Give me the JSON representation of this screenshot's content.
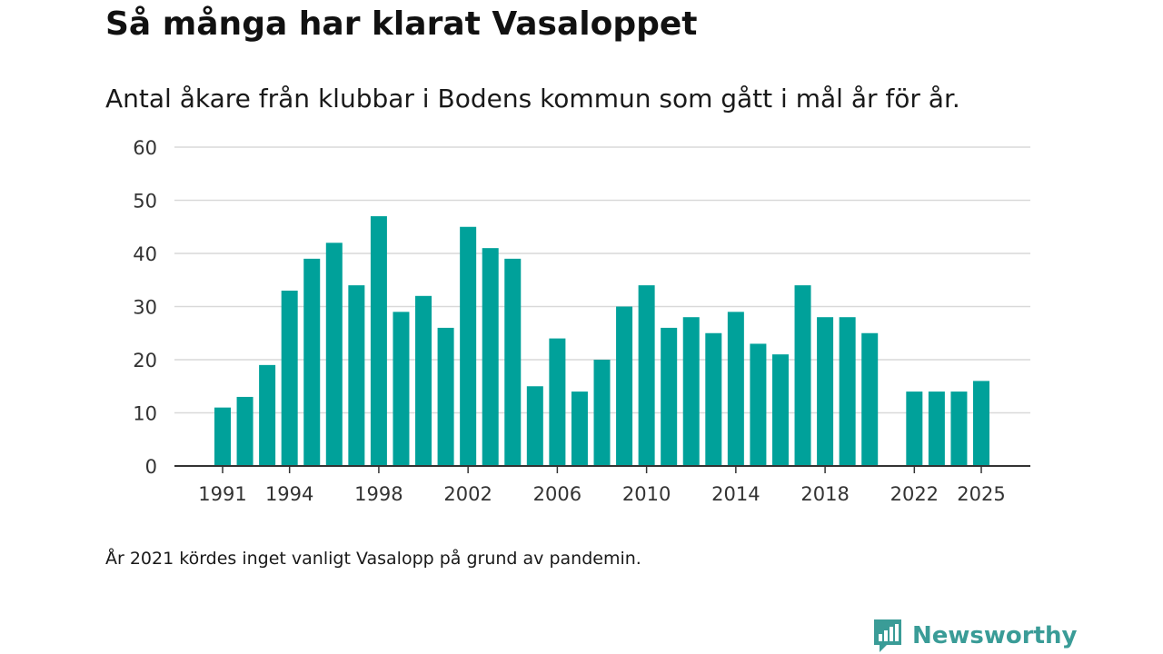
{
  "title": "Så många har klarat Vasaloppet",
  "subtitle": "Antal åkare från klubbar i Bodens kommun som gått i mål år för år.",
  "footnote": "År 2021 kördes inget vanligt Vasalopp på grund av pandemin.",
  "brand": {
    "name": "Newsworthy",
    "logo_icon": "newsworthy-bar-chart-icon",
    "color": "#3a9c97"
  },
  "colors": {
    "bar": "#00a19a",
    "grid": "#d9d9d9",
    "axis": "#333333"
  },
  "chart_data": {
    "type": "bar",
    "title": "Så många har klarat Vasaloppet",
    "subtitle": "Antal åkare från klubbar i Bodens kommun som gått i mål år för år.",
    "xlabel": "",
    "ylabel": "",
    "ylim": [
      0,
      60
    ],
    "yticks": [
      0,
      10,
      20,
      30,
      40,
      50,
      60
    ],
    "xticks": [
      1991,
      1994,
      1998,
      2002,
      2006,
      2010,
      2014,
      2018,
      2022,
      2025
    ],
    "xrange": [
      1991,
      2025
    ],
    "grid": true,
    "legend": "none",
    "categories": [
      1991,
      1992,
      1993,
      1994,
      1995,
      1996,
      1997,
      1998,
      1999,
      2000,
      2001,
      2002,
      2003,
      2004,
      2005,
      2006,
      2007,
      2008,
      2009,
      2010,
      2011,
      2012,
      2013,
      2014,
      2015,
      2016,
      2017,
      2018,
      2019,
      2020,
      2022,
      2023,
      2024,
      2025
    ],
    "values": [
      11,
      13,
      19,
      33,
      39,
      42,
      34,
      47,
      29,
      32,
      26,
      45,
      41,
      39,
      15,
      24,
      14,
      20,
      30,
      34,
      26,
      28,
      25,
      29,
      23,
      21,
      34,
      28,
      28,
      25,
      14,
      14,
      14,
      16
    ]
  }
}
